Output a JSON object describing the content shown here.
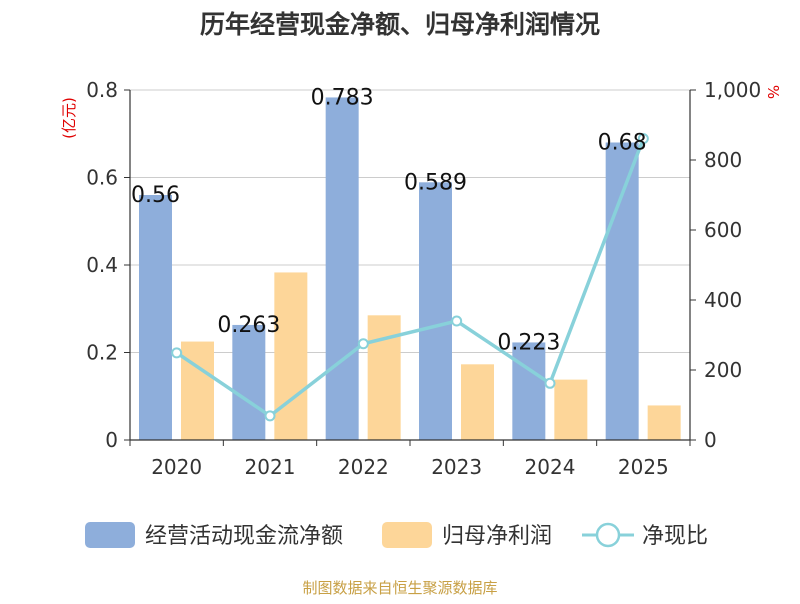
{
  "chart_data": {
    "type": "bar",
    "title": "历年经营现金净额、归母净利润情况",
    "categories": [
      "2020",
      "2021",
      "2022",
      "2023",
      "2024",
      "2025"
    ],
    "left_axis": {
      "unit": "(亿元)",
      "ylim": [
        0,
        0.8
      ],
      "ticks": [
        "0",
        "0.2",
        "0.4",
        "0.6",
        "0.8"
      ]
    },
    "right_axis": {
      "unit": "%",
      "ylim": [
        0,
        1000
      ],
      "ticks": [
        "0",
        "200",
        "400",
        "600",
        "800",
        "1,000"
      ]
    },
    "series": [
      {
        "name": "经营活动现金流净额",
        "type": "bar",
        "axis": "left",
        "color": "#8eaedb",
        "values": [
          0.56,
          0.263,
          0.783,
          0.589,
          0.223,
          0.68
        ],
        "labels": [
          "0.56",
          "0.263",
          "0.783",
          "0.589",
          "0.223",
          "0.68"
        ]
      },
      {
        "name": "归母净利润",
        "type": "bar",
        "axis": "left",
        "color": "#fdd699",
        "values": [
          0.225,
          0.383,
          0.285,
          0.173,
          0.138,
          0.079
        ]
      },
      {
        "name": "净现比",
        "type": "line",
        "axis": "right",
        "color": "#88d1da",
        "values": [
          249,
          69,
          275,
          340,
          162,
          861
        ]
      }
    ],
    "grid": true,
    "legend_position": "bottom"
  },
  "footer": {
    "source": "制图数据来自恒生聚源数据库"
  }
}
